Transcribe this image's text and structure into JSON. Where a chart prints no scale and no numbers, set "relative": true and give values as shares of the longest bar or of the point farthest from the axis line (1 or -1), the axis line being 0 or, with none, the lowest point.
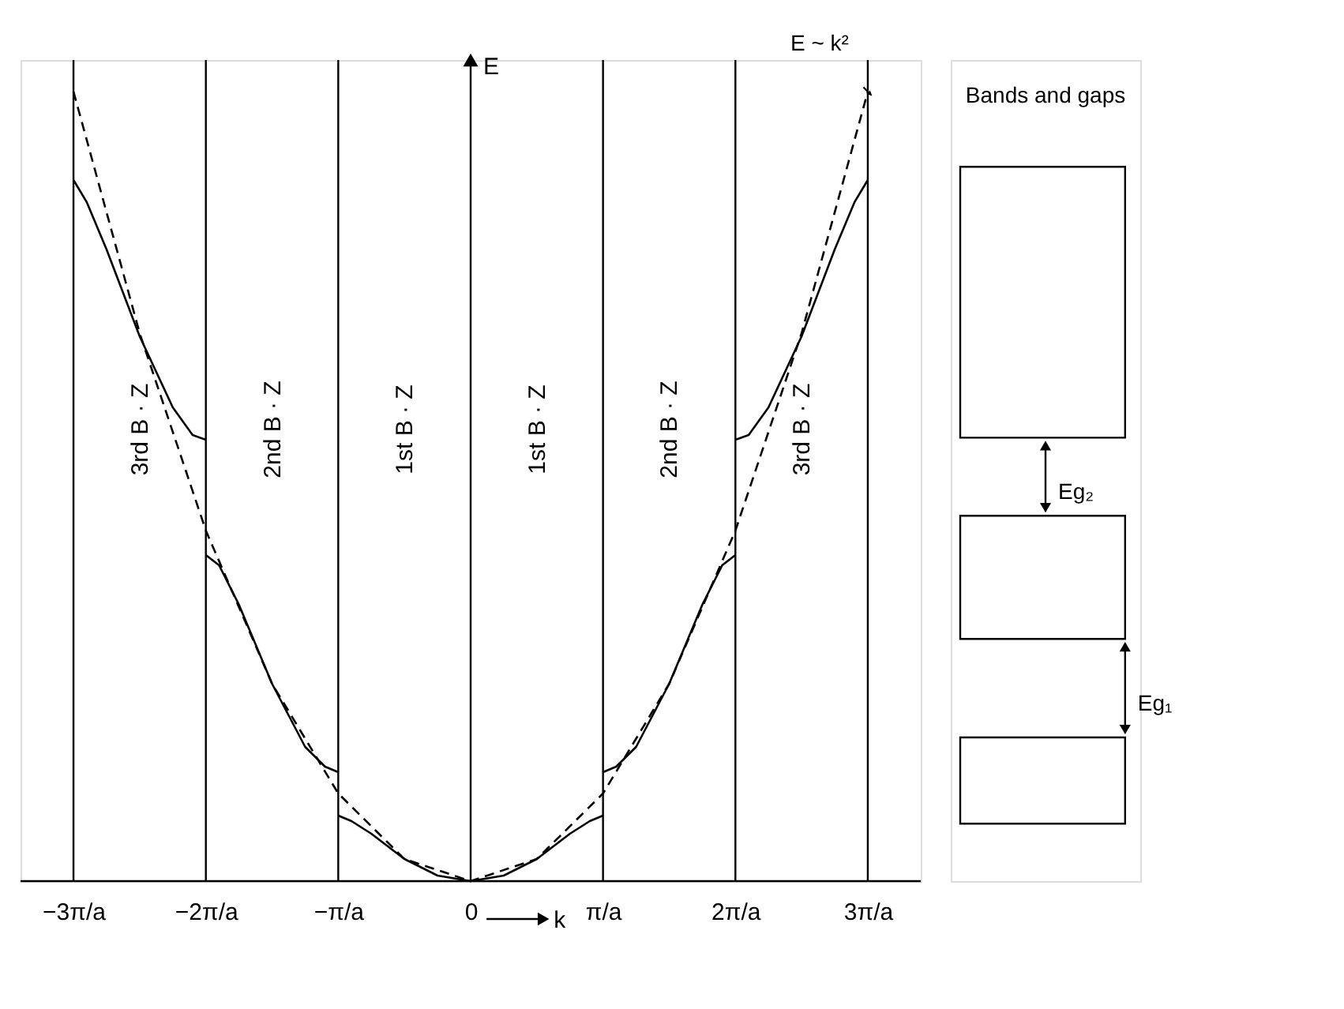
{
  "chart_data": [
    {
      "type": "line",
      "relative": true,
      "xlabel": "k",
      "ylabel": "E",
      "grid": false,
      "marker": "none",
      "xlim": [
        -3.4,
        3.4
      ],
      "xticks": [
        {
          "value": -3,
          "label": "−3π/a"
        },
        {
          "value": -2,
          "label": "−2π/a"
        },
        {
          "value": -1,
          "label": "−π/a"
        },
        0,
        {
          "value": 1,
          "label": "π/a"
        },
        {
          "value": 2,
          "label": "2π/a"
        },
        {
          "value": 3,
          "label": "3π/a"
        }
      ],
      "series": [
        {
          "color": "#000000",
          "line_style": "dashed",
          "x": [
            -3,
            -2.5,
            -2,
            -1.5,
            -1,
            -0.5,
            0,
            0.5,
            1,
            1.5,
            2,
            2.5,
            3
          ],
          "values": [
            1,
            0.694,
            0.444,
            0.25,
            0.111,
            0.028,
            0,
            0.028,
            0.111,
            0.25,
            0.444,
            0.694,
            1
          ]
        },
        {
          "color": "#000000",
          "line_style": "solid",
          "x": [
            -1,
            -0.9,
            -0.75,
            -0.5,
            -0.25,
            0,
            0.25,
            0.5,
            0.75,
            0.9,
            1
          ],
          "values": [
            0.083,
            0.076,
            0.06,
            0.028,
            0.007,
            0,
            0.007,
            0.028,
            0.06,
            0.076,
            0.083
          ]
        },
        {
          "color": "#000000",
          "line_style": "solid",
          "x": [
            -2,
            -1.9,
            -1.75,
            -1.5,
            -1.25,
            -1.1,
            -1
          ],
          "values": [
            0.413,
            0.4,
            0.35,
            0.25,
            0.17,
            0.145,
            0.138
          ]
        },
        {
          "color": "#000000",
          "line_style": "solid",
          "x": [
            1,
            1.1,
            1.25,
            1.5,
            1.75,
            1.9,
            2
          ],
          "values": [
            0.138,
            0.145,
            0.17,
            0.25,
            0.35,
            0.4,
            0.413
          ]
        },
        {
          "color": "#000000",
          "line_style": "solid",
          "x": [
            -3,
            -2.9,
            -2.75,
            -2.5,
            -2.25,
            -2.1,
            -2
          ],
          "values": [
            0.888,
            0.86,
            0.8,
            0.69,
            0.6,
            0.565,
            0.559
          ]
        },
        {
          "color": "#000000",
          "line_style": "solid",
          "x": [
            2,
            2.1,
            2.25,
            2.5,
            2.75,
            2.9,
            3
          ],
          "values": [
            0.559,
            0.565,
            0.6,
            0.69,
            0.8,
            0.86,
            0.888
          ]
        }
      ],
      "ref_lines": [
        {
          "axis": "x",
          "value": -3
        },
        {
          "axis": "x",
          "value": -2
        },
        {
          "axis": "x",
          "value": -1
        },
        {
          "axis": "x",
          "value": 0
        },
        {
          "axis": "x",
          "value": 1
        },
        {
          "axis": "x",
          "value": 2
        },
        {
          "axis": "x",
          "value": 3
        }
      ],
      "annotations": [
        "3rd B · Z",
        "2nd B · Z",
        "1st B · Z",
        "1st B · Z",
        "2nd B · Z",
        "3rd B · Z",
        {
          "text": "E ~ k²",
          "x": 3,
          "y": 1
        }
      ]
    },
    {
      "type": "other",
      "title": "Bands and gaps",
      "annotations": [
        "Eg₂",
        "Eg₁"
      ]
    }
  ]
}
